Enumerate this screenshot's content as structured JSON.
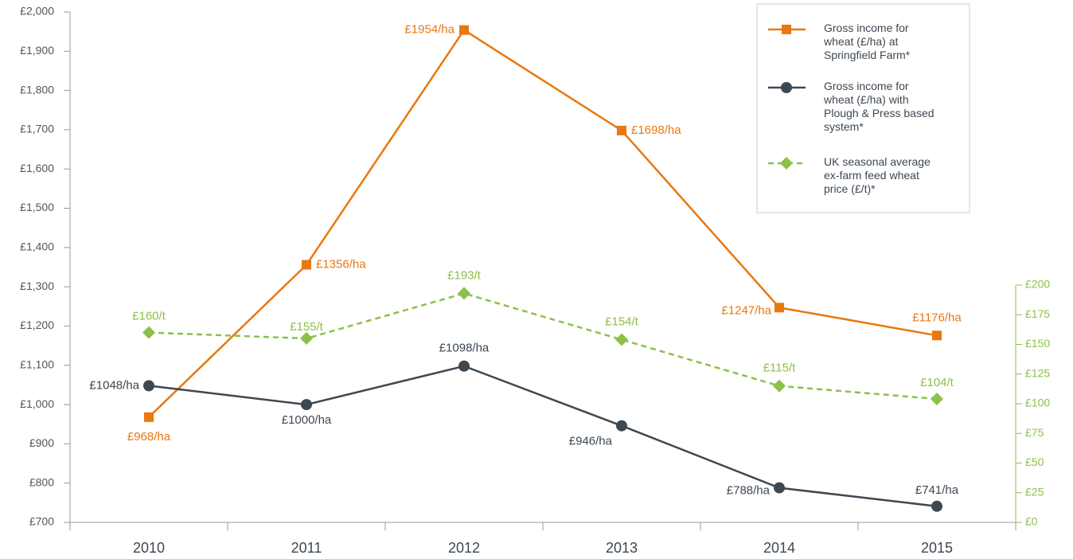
{
  "chart_data": {
    "type": "line",
    "categories": [
      "2010",
      "2011",
      "2012",
      "2013",
      "2014",
      "2015"
    ],
    "ylim": [
      700,
      2000
    ],
    "yticks": [
      {
        "value": 700,
        "label": "£700"
      },
      {
        "value": 800,
        "label": "£800"
      },
      {
        "value": 900,
        "label": "£900"
      },
      {
        "value": 1000,
        "label": "£1,000"
      },
      {
        "value": 1100,
        "label": "£1,100"
      },
      {
        "value": 1200,
        "label": "£1,200"
      },
      {
        "value": 1300,
        "label": "£1,300"
      },
      {
        "value": 1400,
        "label": "£1,400"
      },
      {
        "value": 1500,
        "label": "£1,500"
      },
      {
        "value": 1600,
        "label": "£1,600"
      },
      {
        "value": 1700,
        "label": "£1,700"
      },
      {
        "value": 1800,
        "label": "£1,800"
      },
      {
        "value": 1900,
        "label": "£1,900"
      },
      {
        "value": 2000,
        "label": "£2,000"
      }
    ],
    "y2lim": [
      0,
      200
    ],
    "y2ticks": [
      {
        "value": 0,
        "label": "£0"
      },
      {
        "value": 25,
        "label": "£25"
      },
      {
        "value": 50,
        "label": "£50"
      },
      {
        "value": 75,
        "label": "£75"
      },
      {
        "value": 100,
        "label": "£100"
      },
      {
        "value": 125,
        "label": "£125"
      },
      {
        "value": 150,
        "label": "£150"
      },
      {
        "value": 175,
        "label": "£175"
      },
      {
        "value": 200,
        "label": "£200"
      }
    ],
    "legend": "top-right",
    "series": [
      {
        "name": "Gross income for wheat (£/ha) at Springfield Farm*",
        "color": "#e8780f",
        "marker": "square",
        "dashed": false,
        "values": [
          968,
          1356,
          1954,
          1698,
          1247,
          1176
        ],
        "value_labels": [
          "£968/ha",
          "£1356/ha",
          "£1954/ha",
          "£1698/ha",
          "£1247/ha",
          "£1176/ha"
        ]
      },
      {
        "name": "Gross income for wheat (£/ha) with Plough & Press based system*",
        "color": "#3d4852",
        "marker": "circle",
        "dashed": false,
        "values": [
          1048,
          1000,
          1098,
          946,
          788,
          741
        ],
        "value_labels": [
          "£1048/ha",
          "£1000/ha",
          "£1098/ha",
          "£946/ha",
          "£788/ha",
          "£741/ha"
        ]
      },
      {
        "name": "UK seasonal average ex-farm feed wheat price (£/t)*",
        "color": "#8dc04a",
        "marker": "diamond",
        "dashed": true,
        "axis": "y2",
        "values": [
          160,
          155,
          193,
          154,
          115,
          104
        ],
        "value_labels": [
          "£160/t",
          "£155/t",
          "£193/t",
          "£154/t",
          "£115/t",
          "£104/t"
        ]
      }
    ]
  }
}
